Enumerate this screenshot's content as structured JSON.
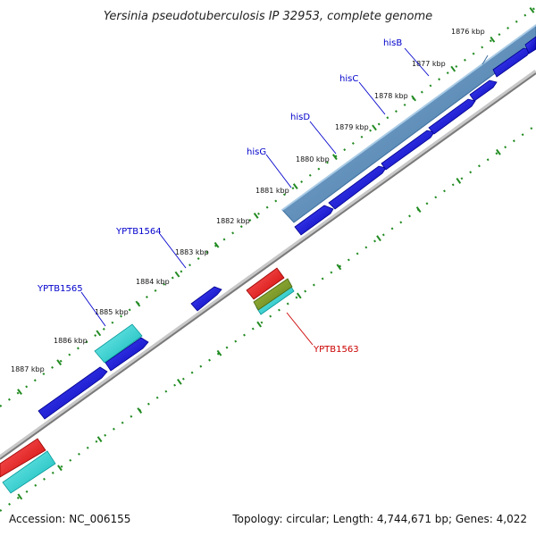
{
  "title": "Yersinia pseudotuberculosis IP 32953, complete genome",
  "footer": {
    "accession": "Accession: NC_006155",
    "topology": "Topology: circular; Length: 4,744,671 bp; Genes: 4,022"
  },
  "colors": {
    "backbone": "#888888",
    "tick": "#228B22",
    "gene_blue": "#0000ee",
    "operon_steel": "#4f86b8",
    "cyan": "#14d6d6",
    "red": "#ee0000",
    "olive": "#6b8e23",
    "label_blue": "#0000cc",
    "label_red": "#cc0000"
  },
  "kbp_labels": [
    "1876 kbp",
    "1877 kbp",
    "1878 kbp",
    "1879 kbp",
    "1880 kbp",
    "1881 kbp",
    "1882 kbp",
    "1883 kbp",
    "1884 kbp",
    "1885 kbp",
    "1886 kbp",
    "1887 kbp"
  ],
  "gene_labels": [
    "hisB",
    "hisC",
    "hisD",
    "hisG",
    "YPTB1564",
    "YPTB1565",
    "YPTB1563"
  ]
}
